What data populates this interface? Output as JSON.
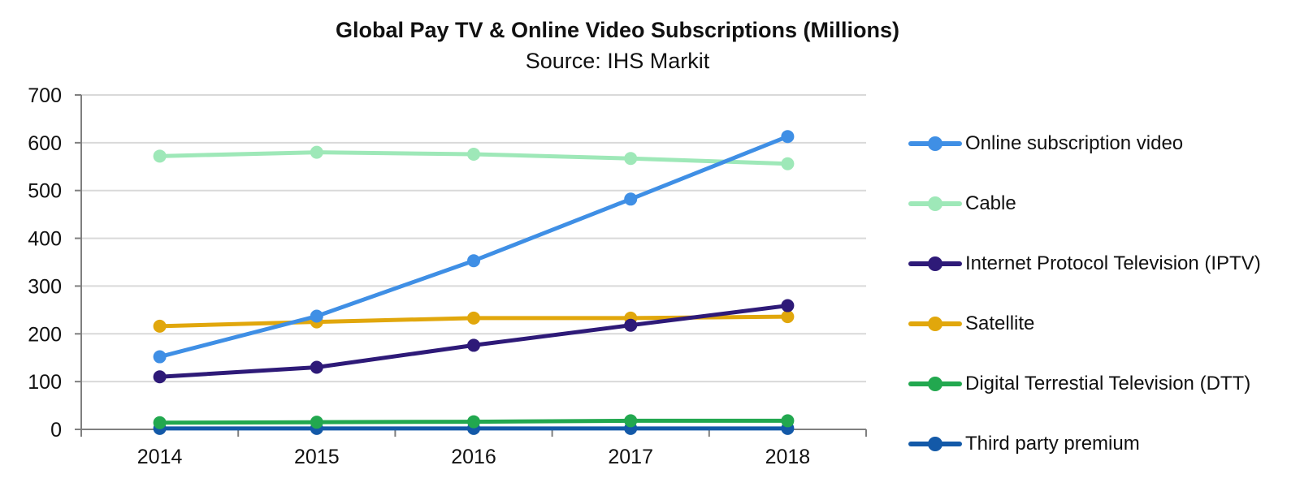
{
  "chart_data": {
    "type": "line",
    "title": "Global Pay TV & Online Video Subscriptions (Millions)",
    "subtitle": "Source: IHS Markit",
    "x": [
      "2014",
      "2015",
      "2016",
      "2017",
      "2018"
    ],
    "ylim": [
      0,
      700
    ],
    "yticks": [
      0,
      100,
      200,
      300,
      400,
      500,
      600,
      700
    ],
    "grid": true,
    "legend_position": "right",
    "series": [
      {
        "name": "Online subscription video",
        "color": "#3f8fe5",
        "values": [
          152,
          237,
          353,
          482,
          613
        ]
      },
      {
        "name": "Cable",
        "color": "#9ee8b8",
        "values": [
          572,
          580,
          576,
          567,
          556
        ]
      },
      {
        "name": "Internet Protocol Television (IPTV)",
        "color": "#2e1a78",
        "values": [
          110,
          130,
          176,
          218,
          259
        ]
      },
      {
        "name": "Satellite",
        "color": "#e1a70c",
        "values": [
          216,
          225,
          233,
          233,
          236
        ]
      },
      {
        "name": "Digital Terrestial Television (DTT)",
        "color": "#22a84f",
        "values": [
          14,
          15,
          16,
          18,
          18
        ]
      },
      {
        "name": "Third party premium",
        "color": "#1359a8",
        "values": [
          2,
          2,
          2,
          2,
          2
        ]
      }
    ]
  }
}
